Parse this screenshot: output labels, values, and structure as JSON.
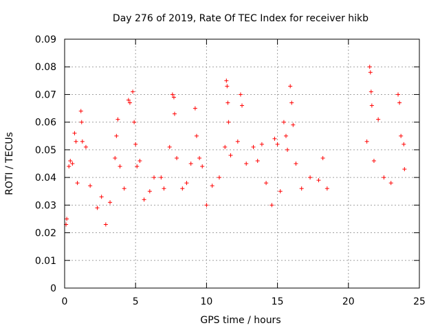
{
  "chart_data": {
    "type": "scatter",
    "title": "Day 276 of 2019, Rate Of TEC Index for receiver hikb",
    "xlabel": "GPS time / hours",
    "ylabel": "ROTI / TECUs",
    "xlim": [
      0,
      25
    ],
    "ylim": [
      0,
      0.09
    ],
    "xticks": [
      0,
      5,
      10,
      15,
      20,
      25
    ],
    "yticks": [
      0,
      0.01,
      0.02,
      0.03,
      0.04,
      0.05,
      0.06,
      0.07,
      0.08,
      0.09
    ],
    "xtick_labels": [
      "0",
      "5",
      "10",
      "15",
      "20",
      "25"
    ],
    "ytick_labels": [
      "0",
      "0.01",
      "0.02",
      "0.03",
      "0.04",
      "0.05",
      "0.06",
      "0.07",
      "0.08",
      "0.09"
    ],
    "grid": true,
    "marker": "+",
    "color": "#ff0000",
    "series": [
      {
        "name": "ROTI",
        "points": [
          [
            0.1,
            0.023
          ],
          [
            0.15,
            0.025
          ],
          [
            0.3,
            0.044
          ],
          [
            0.4,
            0.046
          ],
          [
            0.55,
            0.045
          ],
          [
            0.7,
            0.056
          ],
          [
            0.8,
            0.053
          ],
          [
            0.9,
            0.038
          ],
          [
            1.15,
            0.064
          ],
          [
            1.2,
            0.06
          ],
          [
            1.25,
            0.053
          ],
          [
            1.5,
            0.051
          ],
          [
            1.8,
            0.037
          ],
          [
            2.3,
            0.029
          ],
          [
            2.6,
            0.033
          ],
          [
            2.9,
            0.023
          ],
          [
            3.2,
            0.031
          ],
          [
            3.55,
            0.047
          ],
          [
            3.65,
            0.055
          ],
          [
            3.75,
            0.061
          ],
          [
            3.9,
            0.044
          ],
          [
            4.2,
            0.036
          ],
          [
            4.5,
            0.068
          ],
          [
            4.6,
            0.067
          ],
          [
            4.8,
            0.071
          ],
          [
            4.9,
            0.06
          ],
          [
            5.0,
            0.052
          ],
          [
            5.1,
            0.044
          ],
          [
            5.3,
            0.046
          ],
          [
            5.6,
            0.032
          ],
          [
            6.0,
            0.035
          ],
          [
            6.3,
            0.04
          ],
          [
            6.8,
            0.04
          ],
          [
            7.0,
            0.036
          ],
          [
            7.4,
            0.051
          ],
          [
            7.6,
            0.07
          ],
          [
            7.7,
            0.069
          ],
          [
            7.75,
            0.063
          ],
          [
            7.9,
            0.047
          ],
          [
            8.3,
            0.036
          ],
          [
            8.6,
            0.038
          ],
          [
            8.9,
            0.045
          ],
          [
            9.2,
            0.065
          ],
          [
            9.3,
            0.055
          ],
          [
            9.5,
            0.047
          ],
          [
            9.7,
            0.044
          ],
          [
            10.0,
            0.03
          ],
          [
            10.4,
            0.037
          ],
          [
            10.9,
            0.04
          ],
          [
            11.3,
            0.051
          ],
          [
            11.4,
            0.075
          ],
          [
            11.45,
            0.073
          ],
          [
            11.5,
            0.067
          ],
          [
            11.55,
            0.06
          ],
          [
            11.7,
            0.048
          ],
          [
            12.2,
            0.053
          ],
          [
            12.4,
            0.07
          ],
          [
            12.5,
            0.066
          ],
          [
            12.8,
            0.045
          ],
          [
            13.3,
            0.051
          ],
          [
            13.6,
            0.046
          ],
          [
            13.9,
            0.052
          ],
          [
            14.2,
            0.038
          ],
          [
            14.6,
            0.03
          ],
          [
            14.8,
            0.054
          ],
          [
            15.0,
            0.052
          ],
          [
            15.2,
            0.035
          ],
          [
            15.45,
            0.06
          ],
          [
            15.6,
            0.055
          ],
          [
            15.7,
            0.05
          ],
          [
            15.9,
            0.073
          ],
          [
            16.0,
            0.067
          ],
          [
            16.1,
            0.059
          ],
          [
            16.3,
            0.045
          ],
          [
            16.7,
            0.036
          ],
          [
            17.3,
            0.04
          ],
          [
            17.9,
            0.039
          ],
          [
            18.2,
            0.047
          ],
          [
            18.5,
            0.036
          ],
          [
            21.3,
            0.053
          ],
          [
            21.5,
            0.08
          ],
          [
            21.55,
            0.078
          ],
          [
            21.6,
            0.071
          ],
          [
            21.65,
            0.066
          ],
          [
            21.8,
            0.046
          ],
          [
            22.1,
            0.061
          ],
          [
            22.5,
            0.04
          ],
          [
            23.0,
            0.038
          ],
          [
            23.5,
            0.07
          ],
          [
            23.6,
            0.067
          ],
          [
            23.7,
            0.055
          ],
          [
            23.9,
            0.052
          ],
          [
            23.95,
            0.043
          ]
        ]
      }
    ]
  }
}
